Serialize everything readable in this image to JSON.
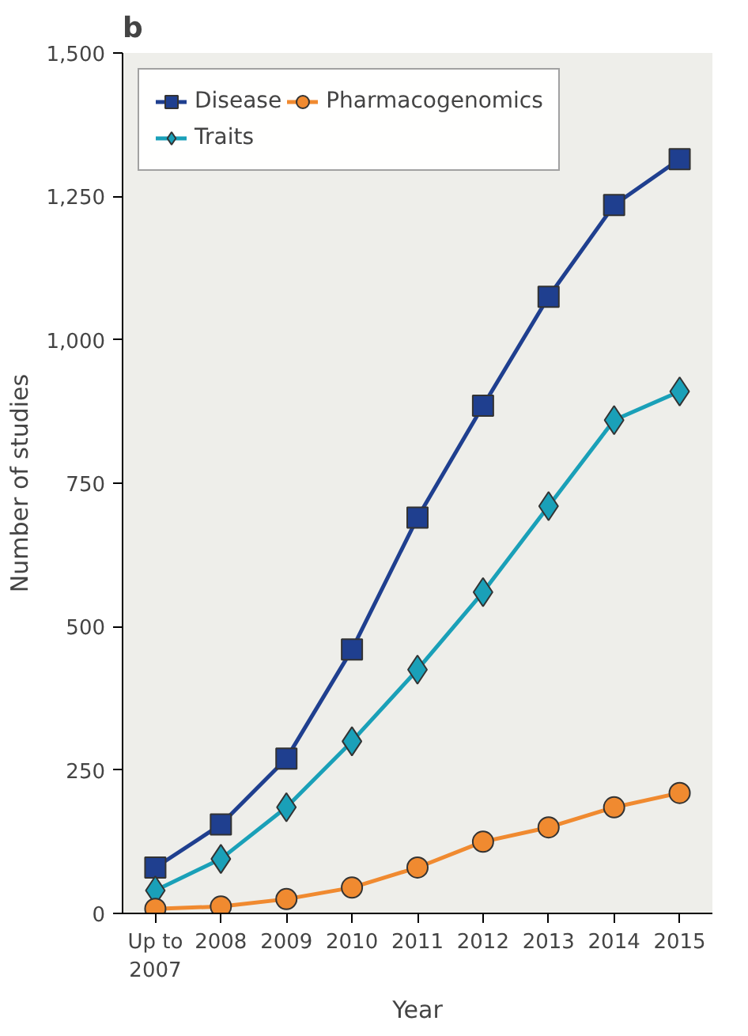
{
  "chart_data": {
    "type": "line",
    "title": "b",
    "xlabel": "Year",
    "ylabel": "Number of studies",
    "categories": [
      "Up to\n2007",
      "2008",
      "2009",
      "2010",
      "2011",
      "2012",
      "2013",
      "2014",
      "2015"
    ],
    "series": [
      {
        "name": "Disease",
        "color": "#1f3f8f",
        "marker": "square",
        "values": [
          80,
          155,
          270,
          460,
          690,
          885,
          1075,
          1235,
          1315
        ]
      },
      {
        "name": "Traits",
        "color": "#1aa0b8",
        "marker": "diamond",
        "values": [
          40,
          95,
          185,
          300,
          425,
          560,
          710,
          860,
          910
        ]
      },
      {
        "name": "Pharmacogenomics",
        "color": "#f08a30",
        "marker": "circle",
        "values": [
          8,
          12,
          25,
          45,
          80,
          125,
          150,
          185,
          210
        ]
      }
    ],
    "ylim": [
      0,
      1500
    ],
    "yticks": [
      {
        "value": 0,
        "label": "0"
      },
      {
        "value": 250,
        "label": "250"
      },
      {
        "value": 500,
        "label": "500"
      },
      {
        "value": 750,
        "label": "750"
      },
      {
        "value": 1000,
        "label": "1,000"
      },
      {
        "value": 1250,
        "label": "1,250"
      },
      {
        "value": 1500,
        "label": "1,500"
      }
    ],
    "grid": false,
    "legend": "top left",
    "line_style": "solid"
  }
}
